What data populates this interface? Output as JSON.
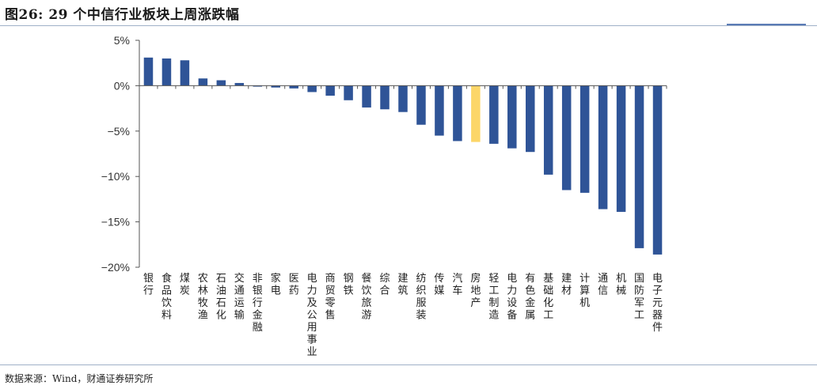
{
  "title": "图26: 29 个中信行业板块上周涨跌幅",
  "source": "数据来源：Wind，财通证券研究所",
  "colors": {
    "bar": "#2f5497",
    "highlight": "#fcd668",
    "axis": "#555555"
  },
  "chart_data": {
    "type": "bar",
    "title": "图26: 29 个中信行业板块上周涨跌幅",
    "xlabel": "",
    "ylabel": "",
    "ylim": [
      -20,
      5
    ],
    "yticks": [
      5,
      0,
      -5,
      -10,
      -15,
      -20
    ],
    "ytick_labels": [
      "5%",
      "0%",
      "−5%",
      "−10%",
      "−15%",
      "−20%"
    ],
    "unit": "%",
    "highlight_index": 18,
    "categories": [
      "银行",
      "食品饮料",
      "煤炭",
      "农林牧渔",
      "石油石化",
      "交通运输",
      "非银行金融",
      "家电",
      "医药",
      "电力及公用事业",
      "商贸零售",
      "钢铁",
      "餐饮旅游",
      "综合",
      "建筑",
      "纺织服装",
      "传媒",
      "汽车",
      "房地产",
      "轻工制造",
      "电力设备",
      "有色金属",
      "基础化工",
      "建材",
      "计算机",
      "通信",
      "机械",
      "国防军工",
      "电子元器件"
    ],
    "values": [
      3.1,
      3.0,
      2.8,
      0.8,
      0.6,
      0.3,
      -0.1,
      -0.2,
      -0.3,
      -0.7,
      -1.1,
      -1.6,
      -2.4,
      -2.6,
      -2.9,
      -4.3,
      -5.5,
      -6.1,
      -6.2,
      -6.4,
      -6.9,
      -7.3,
      -9.8,
      -11.5,
      -11.8,
      -13.6,
      -13.9,
      -17.9,
      -18.6
    ],
    "grid": false,
    "legend": "none"
  }
}
